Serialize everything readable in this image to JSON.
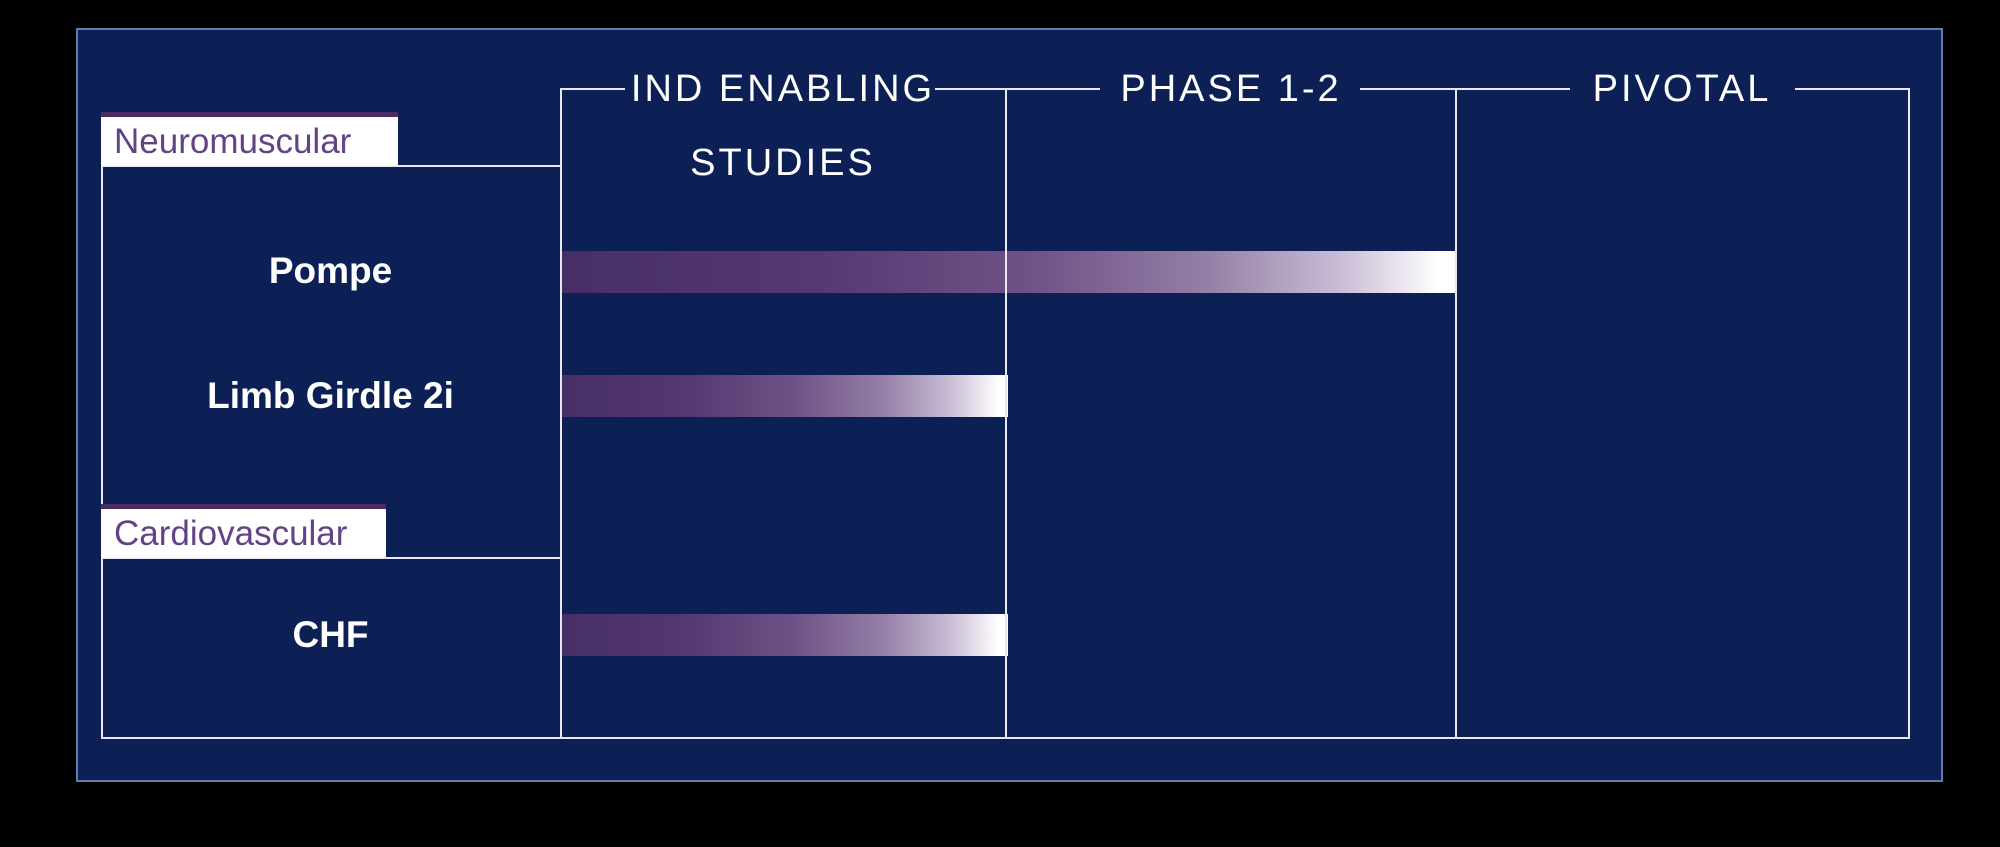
{
  "headers": {
    "col1_line1": "IND ENABLING",
    "col1_line2": "STUDIES",
    "col2": "PHASE 1-2",
    "col3": "PIVOTAL"
  },
  "sections": {
    "neuromuscular": "Neuromuscular",
    "cardiovascular": "Cardiovascular"
  },
  "programs": {
    "pompe": "Pompe",
    "limb_girdle": "Limb Girdle 2i",
    "chf": "CHF"
  },
  "colors": {
    "page_background": "#000000",
    "panel_background": "#0d2056",
    "panel_border": "#5d7ea8",
    "grid_line": "#e9e7f2",
    "bar_gradient_start": "#472f66",
    "bar_gradient_end": "#ffffff",
    "category_tab_background": "#ffffff",
    "category_tab_top_bar": "#4b2b63",
    "category_text": "#634386",
    "header_text": "#ffffff",
    "program_text": "#ffffff"
  },
  "chart_data": {
    "type": "bar",
    "orientation": "horizontal",
    "title": "",
    "phase_columns": [
      "IND ENABLING STUDIES",
      "PHASE 1-2",
      "PIVOTAL"
    ],
    "legend": false,
    "gridlines": "vertical phase dividers",
    "categories": [
      {
        "name": "Neuromuscular",
        "programs": [
          {
            "name": "Pompe",
            "phase_reached": "PHASE 1-2",
            "phases_completed": 2,
            "total_phases": 3,
            "bar_width_pct": 66.4
          },
          {
            "name": "Limb Girdle 2i",
            "phase_reached": "IND ENABLING STUDIES",
            "phases_completed": 1,
            "total_phases": 3,
            "bar_width_pct": 33.1
          }
        ]
      },
      {
        "name": "Cardiovascular",
        "programs": [
          {
            "name": "CHF",
            "phase_reached": "IND ENABLING STUDIES",
            "phases_completed": 1,
            "total_phases": 3,
            "bar_width_pct": 33.1
          }
        ]
      }
    ]
  }
}
